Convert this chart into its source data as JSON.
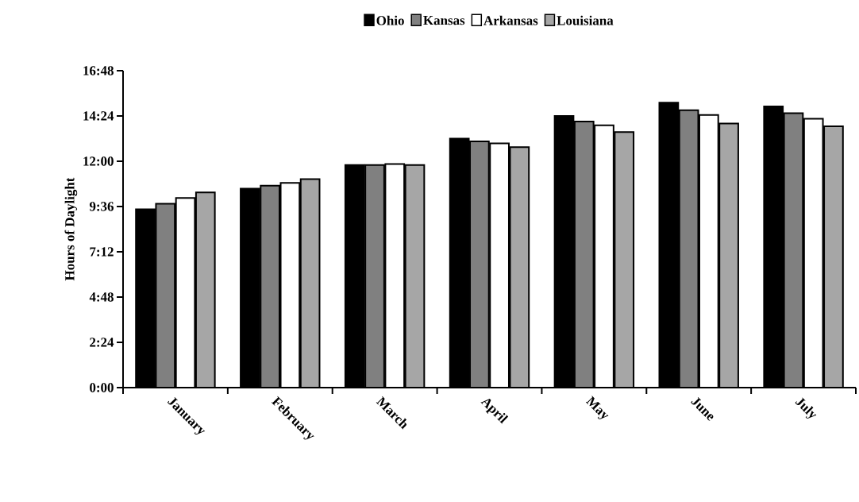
{
  "chart_data": {
    "type": "bar",
    "ylabel": "Hours of Daylight",
    "categories": [
      "January",
      "February",
      "March",
      "April",
      "May",
      "June",
      "July"
    ],
    "series": [
      {
        "name": "Ohio",
        "color": "#000000",
        "values": [
          9.45,
          10.55,
          11.8,
          13.2,
          14.4,
          15.1,
          14.9
        ]
      },
      {
        "name": "Kansas",
        "color": "#808080",
        "values": [
          9.75,
          10.7,
          11.8,
          13.05,
          14.1,
          14.7,
          14.55
        ]
      },
      {
        "name": "Arkansas",
        "color": "#ffffff",
        "values": [
          10.05,
          10.85,
          11.85,
          12.95,
          13.9,
          14.45,
          14.25
        ]
      },
      {
        "name": "Louisiana",
        "color": "#a6a6a6",
        "values": [
          10.35,
          11.05,
          11.8,
          12.75,
          13.55,
          14.0,
          13.85
        ]
      }
    ],
    "ylim": [
      0,
      16.8
    ],
    "yticks": [
      {
        "value": 0,
        "label": "0:00"
      },
      {
        "value": 2.4,
        "label": "2:24"
      },
      {
        "value": 4.8,
        "label": "4:48"
      },
      {
        "value": 7.2,
        "label": "7:12"
      },
      {
        "value": 9.6,
        "label": "9:36"
      },
      {
        "value": 12,
        "label": "12:00"
      },
      {
        "value": 14.4,
        "label": "14:24"
      },
      {
        "value": 16.8,
        "label": "16:48"
      }
    ],
    "legend": "top",
    "grid": false
  }
}
